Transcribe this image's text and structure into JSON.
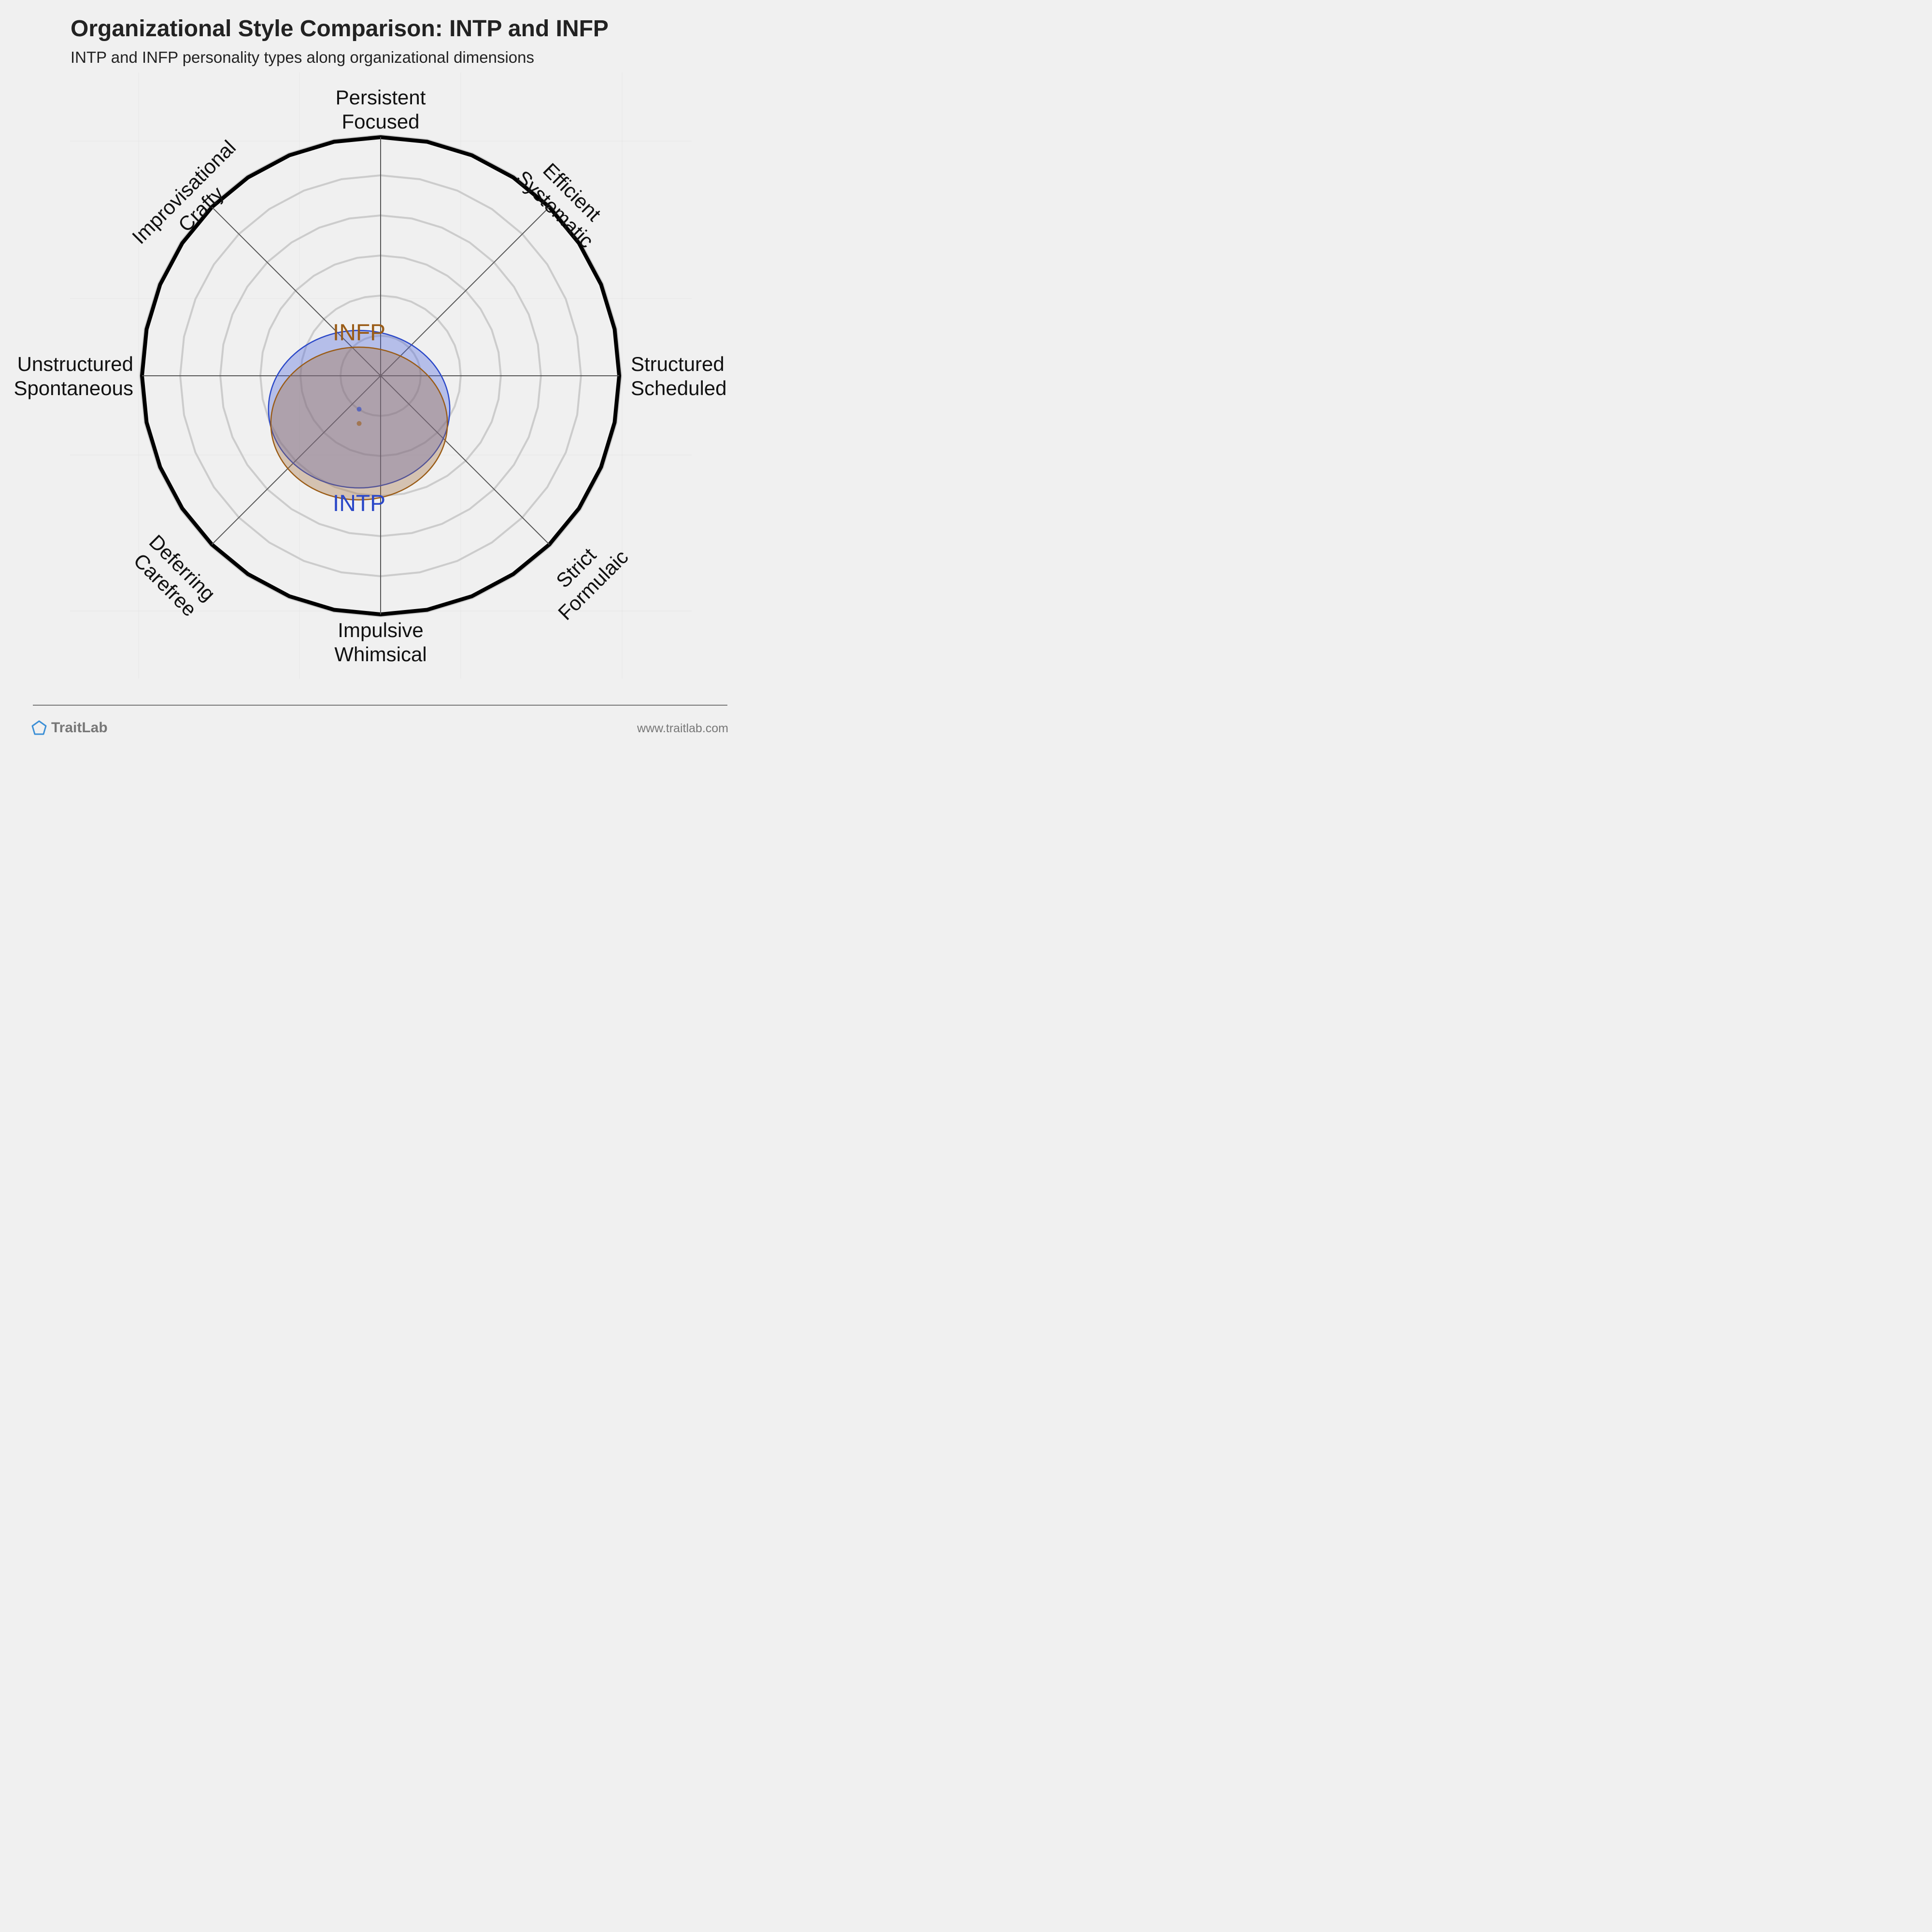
{
  "header": {
    "title": "Organizational Style Comparison: INTP and INFP",
    "subtitle": "INTP and INFP personality types along organizational dimensions"
  },
  "footer": {
    "brand": "TraitLab",
    "url": "www.traitlab.com",
    "logo_icon": "pentagon-icon",
    "brand_color": "#3b8fd6"
  },
  "chart_data": {
    "type": "radar-position",
    "range": [
      -1,
      1
    ],
    "rings": 6,
    "axes": [
      {
        "lines": [
          "Persistent",
          "Focused"
        ]
      },
      {
        "lines": [
          "Efficient",
          "Systematic"
        ]
      },
      {
        "lines": [
          "Structured",
          "Scheduled"
        ]
      },
      {
        "lines": [
          "Strict",
          "Formulaic"
        ]
      },
      {
        "lines": [
          "Impulsive",
          "Whimsical"
        ]
      },
      {
        "lines": [
          "Deferring",
          "Carefree"
        ]
      },
      {
        "lines": [
          "Unstructured",
          "Spontaneous"
        ]
      },
      {
        "lines": [
          "Improvisational",
          "Crafty"
        ]
      }
    ],
    "series": [
      {
        "name": "INTP",
        "x": -0.09,
        "y": -0.14,
        "rx": 0.38,
        "ry": 0.33,
        "color": "#2b48c8",
        "fill": "rgba(72,98,220,0.35)"
      },
      {
        "name": "INFP",
        "x": -0.09,
        "y": -0.2,
        "rx": 0.37,
        "ry": 0.32,
        "color": "#9a5c17",
        "fill": "rgba(160,110,60,0.35)"
      }
    ]
  }
}
